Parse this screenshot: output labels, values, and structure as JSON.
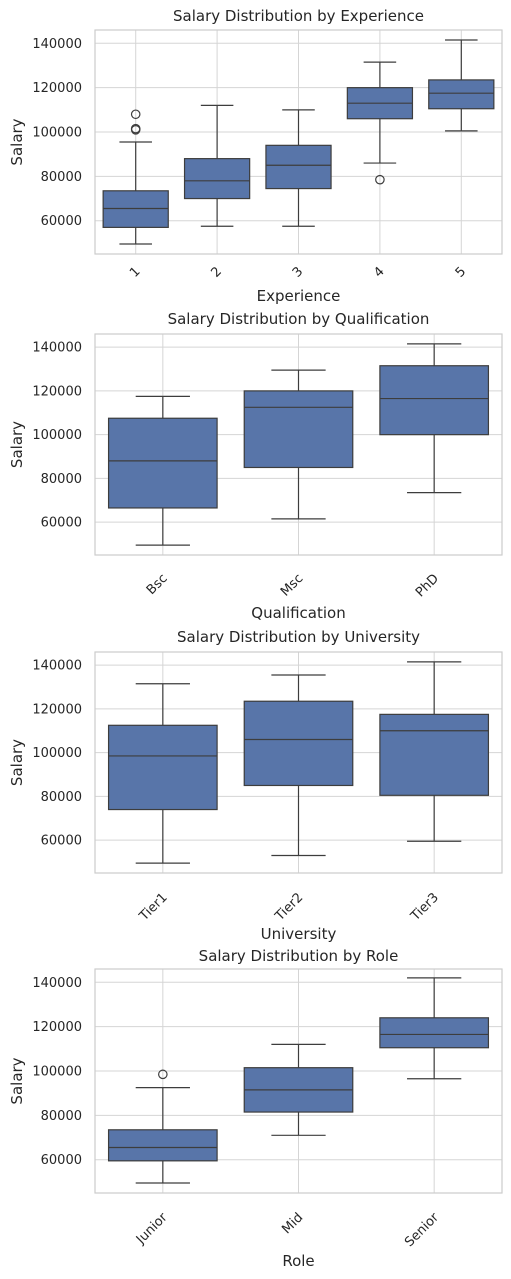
{
  "colors": {
    "box_fill": "#5875a9",
    "line": "#3d3d3d",
    "grid": "#d5d5d5",
    "frame": "#cccccc"
  },
  "chart_data": [
    {
      "type": "box",
      "title": "Salary Distribution by Experience",
      "xlabel": "Experience",
      "ylabel": "Salary",
      "ylim": [
        45000,
        146000
      ],
      "yticks": [
        60000,
        80000,
        100000,
        120000,
        140000
      ],
      "grid": true,
      "categories": [
        "1",
        "2",
        "3",
        "4",
        "5"
      ],
      "boxes": [
        {
          "whisker_low": 49500,
          "q1": 57000,
          "median": 65500,
          "q3": 73500,
          "whisker_high": 95500,
          "outliers": [
            101000,
            101500,
            108000
          ]
        },
        {
          "whisker_low": 57500,
          "q1": 70000,
          "median": 78000,
          "q3": 88000,
          "whisker_high": 112000,
          "outliers": []
        },
        {
          "whisker_low": 57500,
          "q1": 74500,
          "median": 85000,
          "q3": 94000,
          "whisker_high": 110000,
          "outliers": []
        },
        {
          "whisker_low": 86000,
          "q1": 106000,
          "median": 113000,
          "q3": 120000,
          "whisker_high": 131500,
          "outliers": [
            78500
          ]
        },
        {
          "whisker_low": 100500,
          "q1": 110500,
          "median": 117500,
          "q3": 123500,
          "whisker_high": 141500,
          "outliers": []
        }
      ]
    },
    {
      "type": "box",
      "title": "Salary Distribution by Qualification",
      "xlabel": "Qualification",
      "ylabel": "Salary",
      "ylim": [
        45000,
        146000
      ],
      "yticks": [
        60000,
        80000,
        100000,
        120000,
        140000
      ],
      "grid": true,
      "categories": [
        "Bsc",
        "Msc",
        "PhD"
      ],
      "boxes": [
        {
          "whisker_low": 49500,
          "q1": 66500,
          "median": 88000,
          "q3": 107500,
          "whisker_high": 117500,
          "outliers": []
        },
        {
          "whisker_low": 61500,
          "q1": 85000,
          "median": 112500,
          "q3": 120000,
          "whisker_high": 129500,
          "outliers": []
        },
        {
          "whisker_low": 73500,
          "q1": 100000,
          "median": 116500,
          "q3": 131500,
          "whisker_high": 141500,
          "outliers": []
        }
      ]
    },
    {
      "type": "box",
      "title": "Salary Distribution by University",
      "xlabel": "University",
      "ylabel": "Salary",
      "ylim": [
        45000,
        146000
      ],
      "yticks": [
        60000,
        80000,
        100000,
        120000,
        140000
      ],
      "grid": true,
      "categories": [
        "Tier1",
        "Tier2",
        "Tier3"
      ],
      "boxes": [
        {
          "whisker_low": 49500,
          "q1": 74000,
          "median": 98500,
          "q3": 112500,
          "whisker_high": 131500,
          "outliers": []
        },
        {
          "whisker_low": 53000,
          "q1": 85000,
          "median": 106000,
          "q3": 123500,
          "whisker_high": 135500,
          "outliers": []
        },
        {
          "whisker_low": 59500,
          "q1": 80500,
          "median": 110000,
          "q3": 117500,
          "whisker_high": 141500,
          "outliers": []
        }
      ]
    },
    {
      "type": "box",
      "title": "Salary Distribution by Role",
      "xlabel": "Role",
      "ylabel": "Salary",
      "ylim": [
        45000,
        146000
      ],
      "yticks": [
        60000,
        80000,
        100000,
        120000,
        140000
      ],
      "grid": true,
      "categories": [
        "Junior",
        "Mid",
        "Senior"
      ],
      "boxes": [
        {
          "whisker_low": 49500,
          "q1": 59500,
          "median": 65500,
          "q3": 73500,
          "whisker_high": 92500,
          "outliers": [
            98500
          ]
        },
        {
          "whisker_low": 71000,
          "q1": 81500,
          "median": 91500,
          "q3": 101500,
          "whisker_high": 112000,
          "outliers": []
        },
        {
          "whisker_low": 96500,
          "q1": 110500,
          "median": 116500,
          "q3": 124000,
          "whisker_high": 142000,
          "outliers": []
        }
      ]
    }
  ]
}
